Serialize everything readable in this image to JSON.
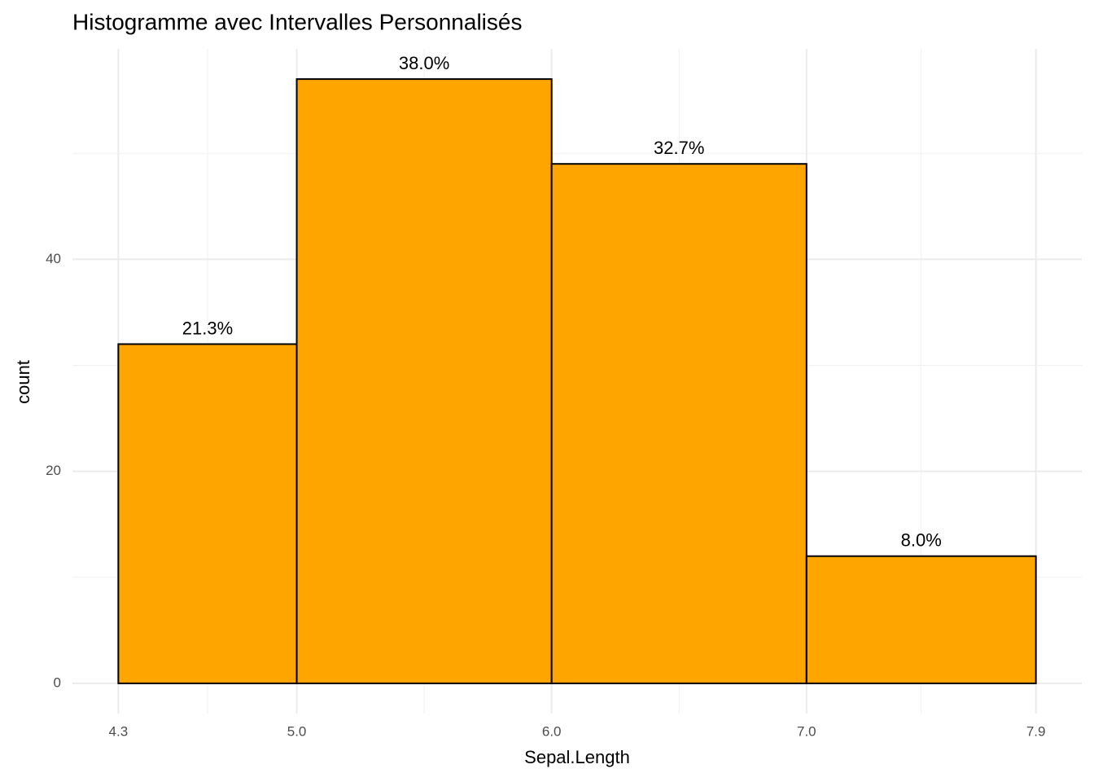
{
  "chart_data": {
    "type": "histogram",
    "title": "Histogramme avec Intervalles Personnalisés",
    "x_label": "Sepal.Length",
    "y_label": "count",
    "bins": [
      4.3,
      5.0,
      6.0,
      7.0,
      7.9
    ],
    "counts": [
      32,
      57,
      49,
      12
    ],
    "bar_labels": [
      "21.3%",
      "38.0%",
      "32.7%",
      "8.0%"
    ],
    "color": "#ffa500",
    "edgecolor": "#000000",
    "xlim": [
      4.12,
      8.08
    ],
    "ylim": [
      -2.85,
      59.85
    ],
    "xticks": [
      4.3,
      {
        "value": 5.0,
        "label": "5.0"
      },
      {
        "value": 6.0,
        "label": "6.0"
      },
      {
        "value": 7.0,
        "label": "7.0"
      },
      7.9
    ],
    "yticks": [
      0,
      20,
      40
    ],
    "xminor": [
      4.65,
      5.5,
      6.5,
      7.45
    ],
    "yminor": [
      10,
      30,
      50
    ],
    "grid": true
  }
}
